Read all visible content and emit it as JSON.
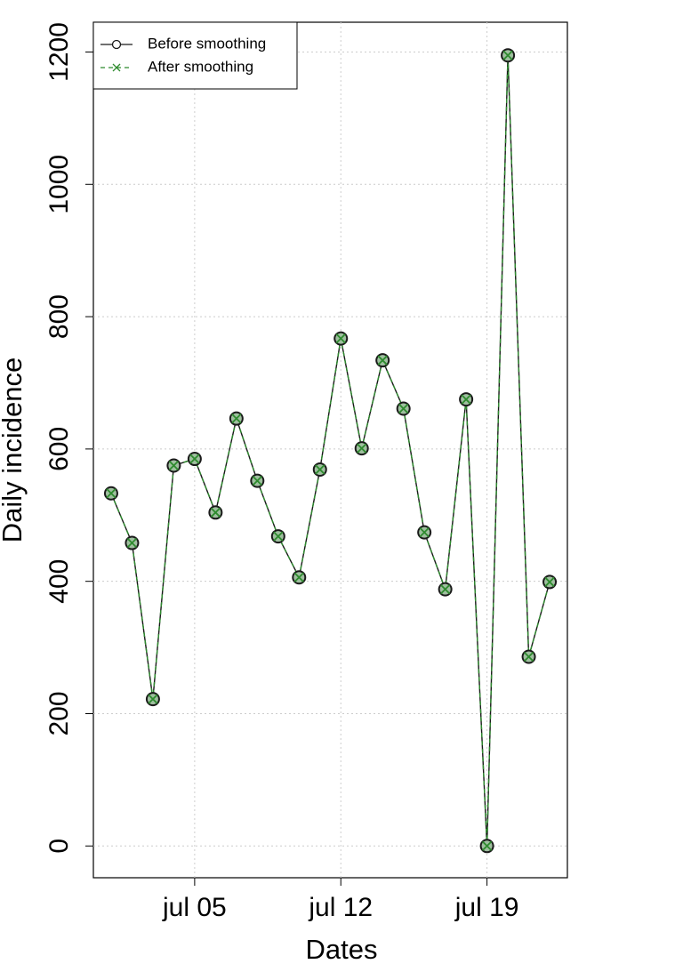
{
  "chart_data": {
    "type": "line",
    "x_label": "Dates",
    "y_label": "Daily incidence",
    "x": [
      1,
      2,
      3,
      4,
      5,
      6,
      7,
      8,
      9,
      10,
      11,
      12,
      13,
      14,
      15,
      16,
      17,
      18,
      19,
      20,
      21,
      22
    ],
    "series": [
      {
        "name": "Before smoothing",
        "color": "#1a1a1a",
        "dashed": false,
        "marker": "circle",
        "values": [
          533,
          458,
          222,
          575,
          585,
          504,
          646,
          552,
          468,
          406,
          569,
          767,
          601,
          734,
          661,
          474,
          388,
          675,
          0,
          1195,
          286,
          399
        ]
      },
      {
        "name": "After smoothing",
        "color": "#2e8b2e",
        "dashed": true,
        "marker": "x",
        "values": [
          533,
          458,
          222,
          575,
          585,
          504,
          646,
          552,
          468,
          406,
          569,
          767,
          601,
          734,
          661,
          474,
          388,
          675,
          0,
          1195,
          286,
          399
        ]
      }
    ],
    "xlim": [
      0.15,
      22.85
    ],
    "xticks": [
      {
        "value": 5,
        "label": "jul 05"
      },
      {
        "value": 12,
        "label": "jul 12"
      },
      {
        "value": 19,
        "label": "jul 19"
      }
    ],
    "ylim": [
      -48,
      1245
    ],
    "yticks": [
      0,
      200,
      400,
      600,
      800,
      1000,
      1200
    ],
    "grid": true,
    "legend": "top-left"
  }
}
